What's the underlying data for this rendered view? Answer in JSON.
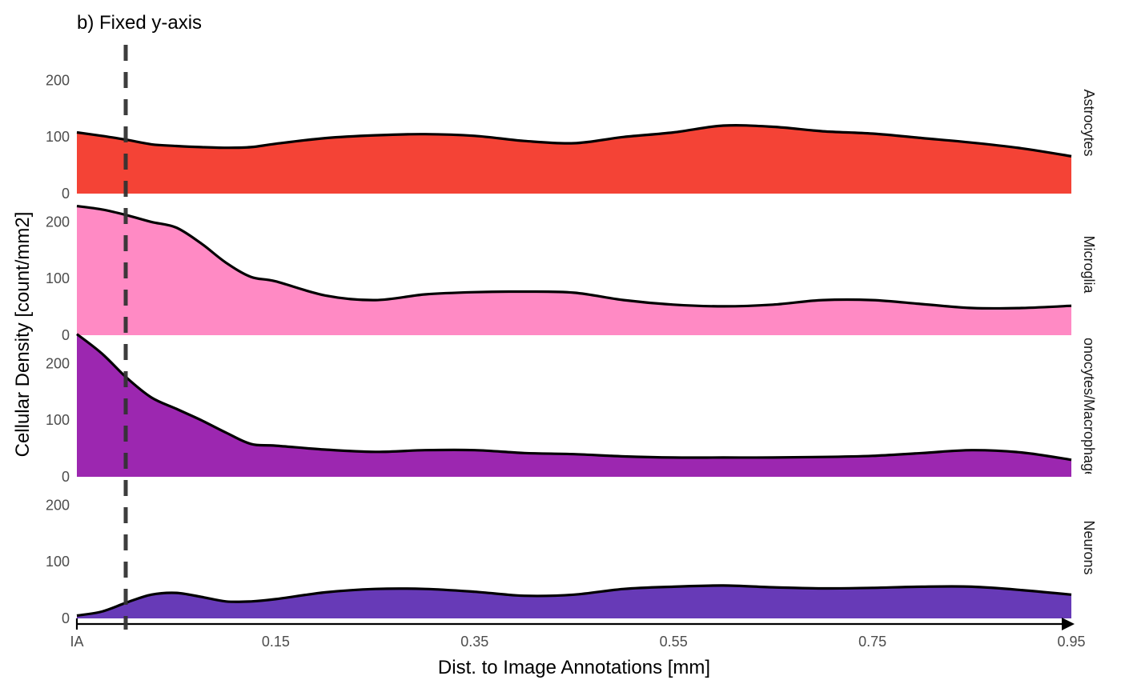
{
  "chart_data": {
    "type": "area",
    "title": "b) Fixed y-axis",
    "xlabel": "Dist. to Image Annotations [mm]",
    "ylabel": "Cellular Density [count/mm2]",
    "x_ticks": [
      "IA",
      "0.15",
      "0.35",
      "0.55",
      "0.75",
      "0.95"
    ],
    "y_ticks": [
      "0",
      "100",
      "200"
    ],
    "ylim": [
      0,
      250
    ],
    "vline_label": "dashed reference line near IA",
    "x": [
      0.0,
      0.025,
      0.05,
      0.075,
      0.1,
      0.125,
      0.15,
      0.175,
      0.2,
      0.25,
      0.3,
      0.35,
      0.4,
      0.45,
      0.5,
      0.55,
      0.6,
      0.65,
      0.7,
      0.75,
      0.8,
      0.85,
      0.9,
      0.95,
      1.0
    ],
    "series": [
      {
        "name": "Astrocytes",
        "color": "#F44336",
        "values": [
          108,
          102,
          95,
          87,
          84,
          82,
          81,
          82,
          88,
          98,
          103,
          105,
          102,
          93,
          89,
          100,
          108,
          120,
          118,
          110,
          106,
          98,
          90,
          80,
          66
        ]
      },
      {
        "name": "Microglia",
        "color": "#FF8AC4",
        "values": [
          228,
          222,
          212,
          200,
          190,
          162,
          128,
          103,
          95,
          70,
          62,
          72,
          76,
          77,
          75,
          62,
          54,
          51,
          54,
          62,
          62,
          55,
          48,
          48,
          52
        ]
      },
      {
        "name": "Monocytes/Macrophages",
        "color": "#9C27B0",
        "values": [
          252,
          218,
          175,
          140,
          120,
          100,
          78,
          58,
          55,
          48,
          44,
          47,
          47,
          42,
          40,
          36,
          34,
          34,
          34,
          35,
          37,
          42,
          47,
          43,
          30
        ]
      },
      {
        "name": "Neurons",
        "color": "#673AB7",
        "values": [
          5,
          12,
          28,
          42,
          45,
          38,
          30,
          30,
          34,
          46,
          52,
          52,
          47,
          40,
          42,
          52,
          56,
          58,
          55,
          53,
          54,
          56,
          56,
          50,
          42
        ]
      }
    ]
  }
}
